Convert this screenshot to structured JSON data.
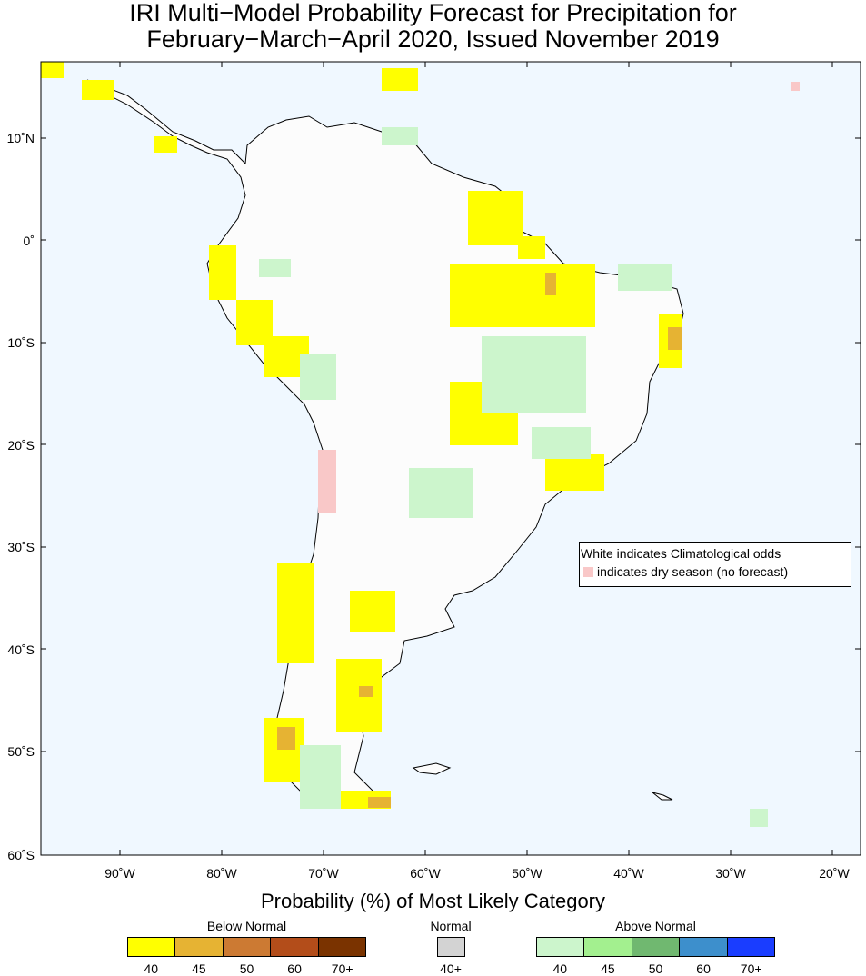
{
  "title": {
    "line1": "IRI Multi−Model Probability Forecast for Precipitation for",
    "line2": "February−March−April 2020, Issued November 2019"
  },
  "map": {
    "background_color": "#f0f8ff",
    "lat_labels": [
      "10˚N",
      "0˚",
      "10˚S",
      "20˚S",
      "30˚S",
      "40˚S",
      "50˚S",
      "60˚S"
    ],
    "lon_labels": [
      "90˚W",
      "80˚W",
      "70˚W",
      "60˚W",
      "50˚W",
      "40˚W",
      "30˚W",
      "20˚W"
    ]
  },
  "legend": {
    "line1": "White indicates Climatological odds",
    "line2": "indicates dry season (no forecast)",
    "dry_color": "#f9c8c8"
  },
  "colorbar": {
    "title": "Probability (%) of Most Likely Category",
    "below": {
      "label": "Below Normal",
      "colors": [
        "#ffff00",
        "#e6b333",
        "#cc7a33",
        "#b34d1a",
        "#7a3300"
      ],
      "ticks": [
        "40",
        "45",
        "50",
        "60",
        "70+"
      ]
    },
    "normal": {
      "label": "Normal",
      "colors": [
        "#d3d3d3"
      ],
      "ticks": [
        "40+"
      ]
    },
    "above": {
      "label": "Above Normal",
      "colors": [
        "#ccf5cc",
        "#a3f08f",
        "#70b870",
        "#3d8fcc",
        "#1a3dff"
      ],
      "ticks": [
        "40",
        "45",
        "50",
        "60",
        "70+"
      ]
    }
  }
}
